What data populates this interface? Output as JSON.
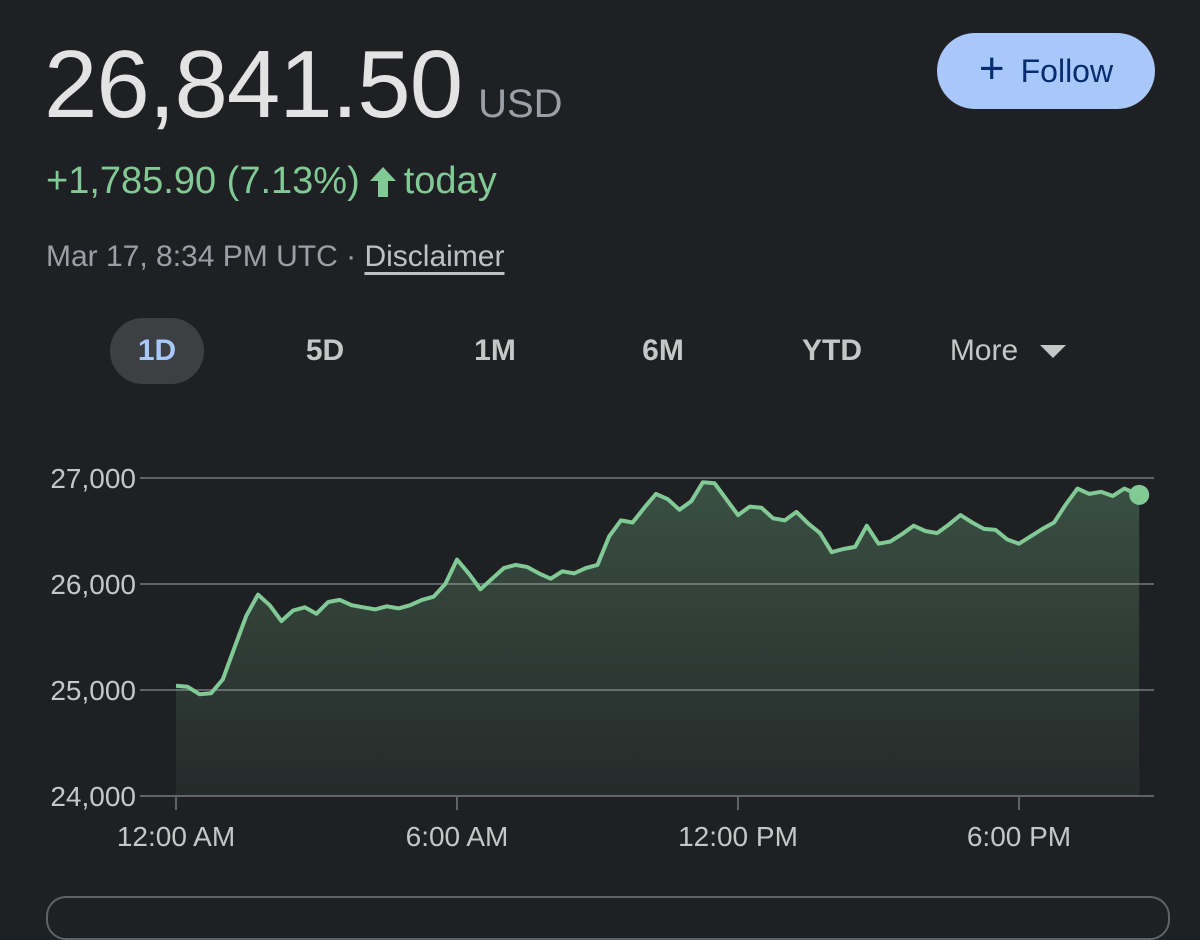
{
  "quote": {
    "price": "26,841.50",
    "currency": "USD",
    "change": "+1,785.90 (7.13%)",
    "period": "today",
    "timestamp": "Mar 17, 8:34 PM UTC",
    "separator": "·",
    "disclaimer_label": "Disclaimer"
  },
  "follow_button": {
    "label": "Follow",
    "icon": "plus-icon"
  },
  "tabs": [
    {
      "label": "1D",
      "active": true
    },
    {
      "label": "5D",
      "active": false
    },
    {
      "label": "1M",
      "active": false
    },
    {
      "label": "6M",
      "active": false
    },
    {
      "label": "YTD",
      "active": false
    },
    {
      "label": "More",
      "active": false
    }
  ],
  "colors": {
    "line": "#81c995",
    "accent": "#a8c7fa",
    "background": "#1f2023",
    "gridline": "#5f6368"
  },
  "chart_data": {
    "type": "area",
    "title": "",
    "xlabel": "",
    "ylabel": "",
    "ylim": [
      24000,
      27000
    ],
    "xlim": [
      "12:00 AM",
      "8:34 PM"
    ],
    "y_ticks": [
      "27,000",
      "26,000",
      "25,000",
      "24,000"
    ],
    "x_ticks": [
      "12:00 AM",
      "6:00 AM",
      "12:00 PM",
      "6:00 PM"
    ],
    "grid": true,
    "series": [
      {
        "x": [
          "12:00 AM",
          "12:15 AM",
          "12:30 AM",
          "12:45 AM",
          "1:00 AM",
          "1:15 AM",
          "1:30 AM",
          "1:45 AM",
          "2:00 AM",
          "2:15 AM",
          "2:30 AM",
          "2:45 AM",
          "3:00 AM",
          "3:15 AM",
          "3:30 AM",
          "3:45 AM",
          "4:00 AM",
          "4:15 AM",
          "4:30 AM",
          "4:45 AM",
          "5:00 AM",
          "5:15 AM",
          "5:30 AM",
          "5:45 AM",
          "6:00 AM",
          "6:15 AM",
          "6:30 AM",
          "6:45 AM",
          "7:00 AM",
          "7:15 AM",
          "7:30 AM",
          "7:45 AM",
          "8:00 AM",
          "8:15 AM",
          "8:30 AM",
          "8:45 AM",
          "9:00 AM",
          "9:15 AM",
          "9:30 AM",
          "9:45 AM",
          "10:00 AM",
          "10:15 AM",
          "10:30 AM",
          "10:45 AM",
          "11:00 AM",
          "11:15 AM",
          "11:30 AM",
          "11:45 AM",
          "12:00 PM",
          "12:15 PM",
          "12:30 PM",
          "12:45 PM",
          "1:00 PM",
          "1:15 PM",
          "1:30 PM",
          "1:45 PM",
          "2:00 PM",
          "2:15 PM",
          "2:30 PM",
          "2:45 PM",
          "3:00 PM",
          "3:15 PM",
          "3:30 PM",
          "3:45 PM",
          "4:00 PM",
          "4:15 PM",
          "4:30 PM",
          "4:45 PM",
          "5:00 PM",
          "5:15 PM",
          "5:30 PM",
          "5:45 PM",
          "6:00 PM",
          "6:15 PM",
          "6:30 PM",
          "6:45 PM",
          "7:00 PM",
          "7:15 PM",
          "7:30 PM",
          "7:45 PM",
          "8:00 PM",
          "8:15 PM",
          "8:34 PM"
        ],
        "y": [
          25040,
          25030,
          24960,
          24970,
          25100,
          25400,
          25700,
          25900,
          25800,
          25650,
          25750,
          25780,
          25720,
          25830,
          25850,
          25800,
          25780,
          25760,
          25790,
          25770,
          25800,
          25850,
          25880,
          26000,
          26230,
          26100,
          25950,
          26050,
          26150,
          26180,
          26160,
          26100,
          26050,
          26120,
          26100,
          26150,
          26180,
          26450,
          26600,
          26580,
          26720,
          26850,
          26800,
          26700,
          26780,
          26960,
          26950,
          26800,
          26650,
          26730,
          26720,
          26620,
          26600,
          26680,
          26570,
          26480,
          26300,
          26330,
          26350,
          26550,
          26380,
          26400,
          26470,
          26550,
          26500,
          26480,
          26560,
          26650,
          26580,
          26520,
          26510,
          26420,
          26380,
          26450,
          26520,
          26580,
          26750,
          26900,
          26850,
          26870,
          26830,
          26900,
          26841
        ]
      }
    ],
    "last_point": "26,841.50"
  }
}
